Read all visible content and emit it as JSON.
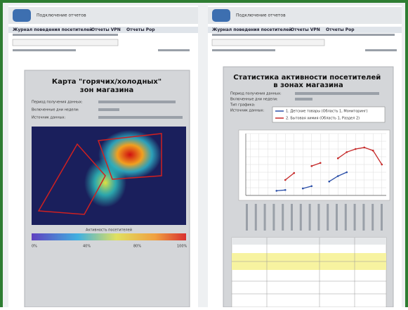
{
  "left_page": {
    "app_title": "Подключение отчетов",
    "menu": [
      "Журнал поведения посетителей",
      "Отчеты VPN",
      "Отчеты Pop"
    ],
    "title": "Карта \"горячих/холодных\" зон магазина",
    "info": [
      "Период получения данных:",
      "Включенные дни недели:",
      "Источник данных:"
    ],
    "scale_title": "Активность посетителей",
    "scale_labels": [
      "0%",
      "40%",
      "80%",
      "100%"
    ]
  },
  "right_page": {
    "app_title": "Подключение отчетов",
    "menu": [
      "Журнал поведения посетителей",
      "Отчеты VPN",
      "Отчеты Pop"
    ],
    "title": "Статистика активности посетителей в зонах магазина",
    "info": [
      "Период получения данных:",
      "Включенные дни недели:",
      "Тип графика:",
      "Источник данных:"
    ],
    "chart_data": {
      "type": "line",
      "categories": [
        null,
        null,
        null,
        null,
        null,
        null,
        null,
        null,
        null,
        null,
        null,
        null,
        null,
        null,
        null,
        null
      ],
      "ylim": [
        0,
        800
      ],
      "series": [
        {
          "name": "1. Детские товары (Область 1, Мониторинг)",
          "color": "#2b4fa8",
          "values": [
            null,
            null,
            null,
            60,
            70,
            null,
            90,
            120,
            null,
            180,
            250,
            300,
            null,
            null,
            null,
            null
          ]
        },
        {
          "name": "2. Бытовая химия (Область 1, Раздел 2)",
          "color": "#c62828",
          "values": [
            null,
            null,
            null,
            null,
            200,
            290,
            null,
            380,
            420,
            null,
            480,
            560,
            600,
            620,
            580,
            400
          ]
        }
      ]
    }
  }
}
